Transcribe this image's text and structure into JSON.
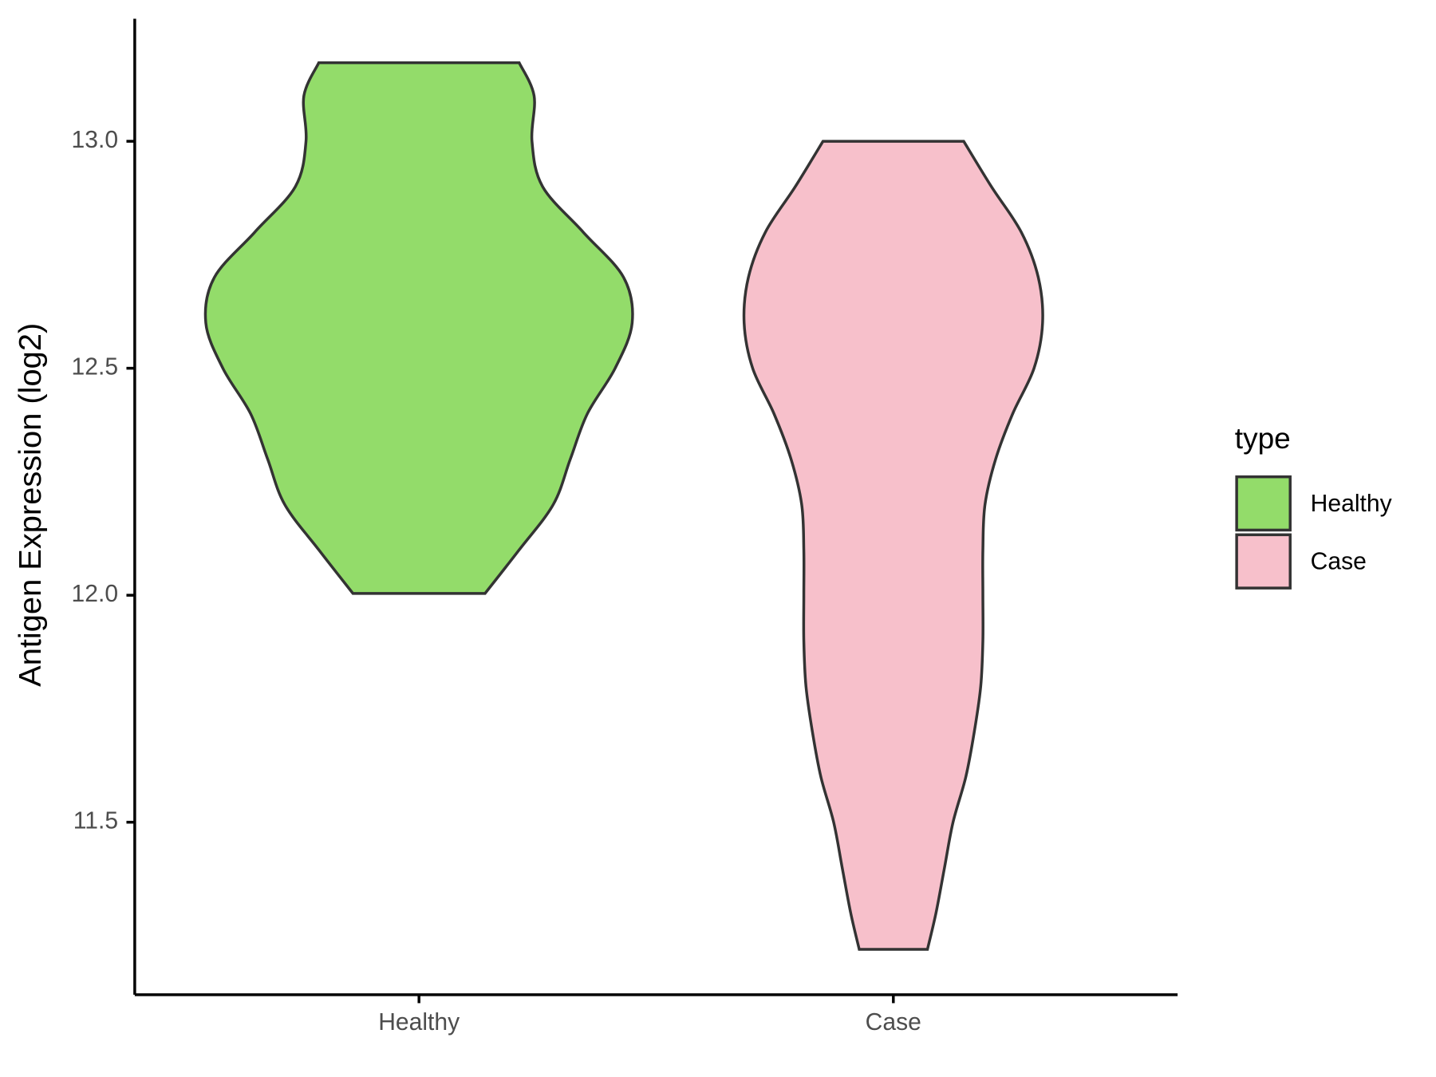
{
  "chart_data": {
    "type": "violin",
    "y_label": "Antigen Expression (log2)",
    "categories": [
      "Healthy",
      "Case"
    ],
    "legend_title": "type",
    "legend_position": "right",
    "ylim": [
      11.12,
      13.27
    ],
    "yticks": [
      11.5,
      {
        "value": 12,
        "label": "12.0"
      },
      12.5,
      {
        "value": 13,
        "label": "13.0"
      }
    ],
    "series": [
      {
        "name": "Healthy",
        "color": "#93dc6a",
        "y": [
          13.173,
          13.1,
          13.0,
          12.9,
          12.8,
          12.7,
          12.6,
          12.5,
          12.4,
          12.3,
          12.2,
          12.1,
          12.004
        ],
        "width": [
          0.47,
          0.54,
          0.53,
          0.58,
          0.77,
          0.96,
          1.0,
          0.92,
          0.79,
          0.71,
          0.63,
          0.47,
          0.31
        ]
      },
      {
        "name": "Case",
        "color": "#f7c0cb",
        "y": [
          13.0,
          12.9,
          12.8,
          12.7,
          12.6,
          12.5,
          12.4,
          12.3,
          12.2,
          12.1,
          12.0,
          11.9,
          11.8,
          11.7,
          11.6,
          11.5,
          11.4,
          11.3,
          11.22
        ],
        "width": [
          0.33,
          0.46,
          0.6,
          0.68,
          0.7,
          0.66,
          0.56,
          0.48,
          0.43,
          0.42,
          0.42,
          0.42,
          0.41,
          0.38,
          0.34,
          0.28,
          0.24,
          0.2,
          0.16
        ]
      }
    ]
  }
}
